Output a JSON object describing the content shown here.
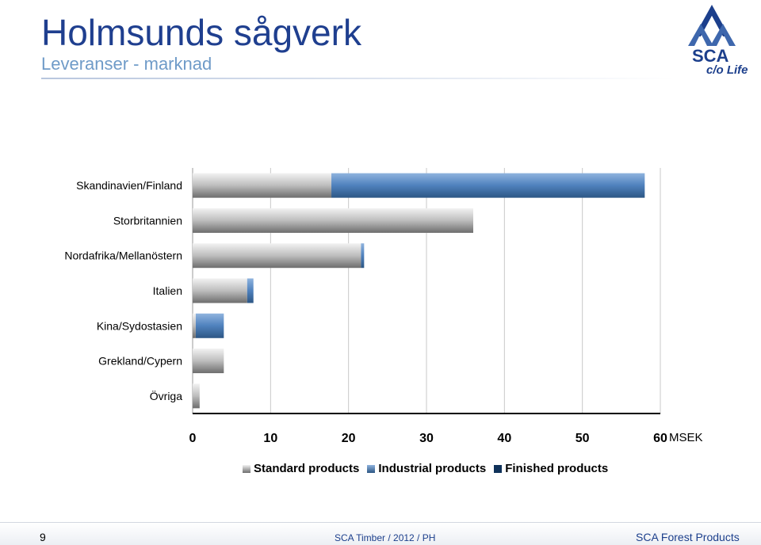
{
  "header": {
    "title": "Holmsunds sågverk",
    "subtitle": "Leveranser - marknad"
  },
  "logo": {
    "name": "SCA",
    "tagline": "c/o Life",
    "color": "#1c3f8c"
  },
  "chart_data": {
    "type": "bar",
    "orientation": "horizontal",
    "stacked": true,
    "categories": [
      "Skandinavien/Finland",
      "Storbritannien",
      "Nordafrika/Mellanöstern",
      "Italien",
      "Kina/Sydostasien",
      "Grekland/Cypern",
      "Övriga"
    ],
    "series": [
      {
        "name": "Standard products",
        "color": "#9e9e9e",
        "values": [
          17.8,
          36,
          21.6,
          7,
          0.4,
          4,
          0.9
        ]
      },
      {
        "name": "Industrial products",
        "color": "#4f81bd",
        "values": [
          40.2,
          0,
          0.4,
          0.8,
          3.6,
          0,
          0
        ]
      },
      {
        "name": "Finished products",
        "color": "#10325a",
        "values": [
          0,
          0,
          0,
          0,
          0,
          0,
          0
        ]
      }
    ],
    "xlim": [
      0,
      60
    ],
    "xticks": [
      0,
      10,
      20,
      30,
      40,
      50,
      60
    ],
    "xunit": "MSEK",
    "grid": true,
    "legend": "bottom"
  },
  "footer": {
    "page": "9",
    "center": "SCA Timber / 2012 / PH",
    "right": "SCA Forest Products"
  }
}
